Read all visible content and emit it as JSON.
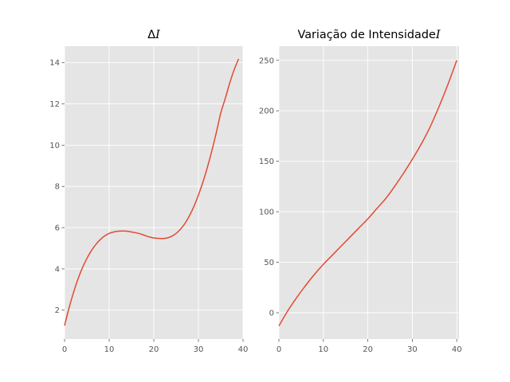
{
  "chart_data": [
    {
      "type": "line",
      "title": "ΔI",
      "title_parts": [
        {
          "text": "Δ",
          "style": "normal"
        },
        {
          "text": "I",
          "style": "italic"
        }
      ],
      "xlabel": "",
      "ylabel": "",
      "xlim": [
        0,
        40
      ],
      "ylim": [
        0.6,
        14.8
      ],
      "xticks": [
        0,
        10,
        20,
        30,
        40
      ],
      "yticks": [
        2,
        4,
        6,
        8,
        10,
        12,
        14
      ],
      "grid": true,
      "colors": {
        "line": "#E24A33",
        "background": "#E5E5E5",
        "grid": "#FFFFFF"
      },
      "series": [
        {
          "x": [
            0,
            1,
            2,
            3,
            4,
            5,
            6,
            7,
            8,
            9,
            10,
            11,
            12,
            13,
            14,
            15,
            16,
            17,
            18,
            19,
            20,
            21,
            22,
            23,
            24,
            25,
            26,
            27,
            28,
            29,
            30,
            31,
            32,
            33,
            34,
            35,
            36,
            37,
            38,
            39
          ],
          "values": [
            1.25,
            2.1,
            2.85,
            3.5,
            4.05,
            4.5,
            4.88,
            5.18,
            5.42,
            5.6,
            5.72,
            5.79,
            5.83,
            5.84,
            5.83,
            5.79,
            5.75,
            5.7,
            5.62,
            5.55,
            5.5,
            5.48,
            5.47,
            5.5,
            5.58,
            5.72,
            5.93,
            6.21,
            6.58,
            7.03,
            7.58,
            8.2,
            8.92,
            9.72,
            10.6,
            11.55,
            12.25,
            13.0,
            13.65,
            14.18
          ]
        }
      ]
    },
    {
      "type": "line",
      "title": "Variação de IntensidadeI",
      "title_parts": [
        {
          "text": "Variação de Intensidade",
          "style": "normal"
        },
        {
          "text": "I",
          "style": "italic"
        }
      ],
      "xlabel": "",
      "ylabel": "",
      "xlim": [
        0,
        40.5
      ],
      "ylim": [
        -26,
        264
      ],
      "xticks": [
        0,
        10,
        20,
        30,
        40
      ],
      "yticks": [
        0,
        50,
        100,
        150,
        200,
        250
      ],
      "grid": true,
      "colors": {
        "line": "#E24A33",
        "background": "#E5E5E5",
        "grid": "#FFFFFF"
      },
      "series": [
        {
          "x": [
            0,
            2,
            4,
            6,
            8,
            10,
            12,
            14,
            16,
            18,
            20,
            22,
            24,
            26,
            28,
            30,
            32,
            34,
            36,
            38,
            40
          ],
          "values": [
            -13,
            2,
            15,
            27,
            38,
            48,
            57,
            66,
            75,
            84,
            93,
            103,
            113,
            125,
            138,
            152,
            167,
            184,
            204,
            226,
            250
          ]
        }
      ]
    }
  ]
}
